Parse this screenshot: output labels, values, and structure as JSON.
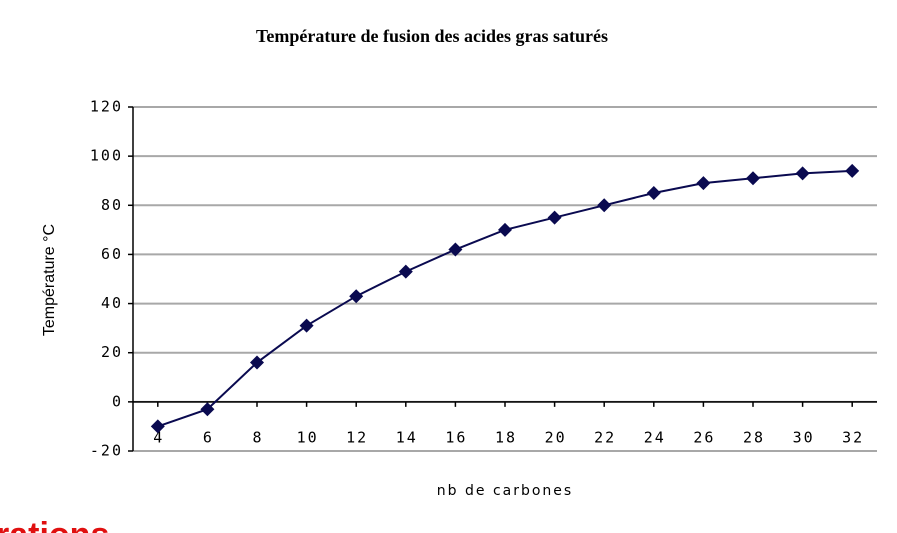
{
  "chart_data": {
    "type": "line",
    "title": "Température de fusion des acides gras saturés",
    "x_label": "nb de carbones",
    "y_label": "Température °C",
    "x": [
      4,
      6,
      8,
      10,
      12,
      14,
      16,
      18,
      20,
      22,
      24,
      26,
      28,
      30,
      32
    ],
    "series": [
      {
        "name": "Température de fusion",
        "color": "#0a0a50",
        "values": [
          -10,
          -3,
          16,
          31,
          43,
          53,
          62,
          70,
          75,
          80,
          85,
          89,
          91,
          93,
          94
        ]
      }
    ],
    "xlim": [
      3,
      33
    ],
    "xticks": [
      4,
      6,
      8,
      10,
      12,
      14,
      16,
      18,
      20,
      22,
      24,
      26,
      28,
      30,
      32
    ],
    "ylim": [
      -20,
      120
    ],
    "yticks": [
      -20,
      0,
      20,
      40,
      60,
      80,
      100,
      120
    ],
    "grid": true
  },
  "footer_text": "rations"
}
